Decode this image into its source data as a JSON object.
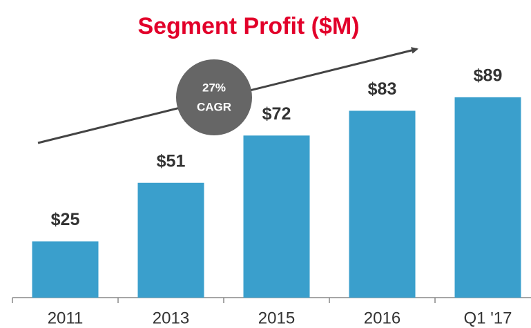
{
  "chart_data": {
    "type": "bar",
    "title": "Segment Profit ($M)",
    "categories": [
      "2011",
      "2013",
      "2015",
      "2016",
      "Q1 '17"
    ],
    "values": [
      25,
      51,
      72,
      83,
      89
    ],
    "value_labels": [
      "$25",
      "$51",
      "$72",
      "$83",
      "$89"
    ],
    "color": "#3a9fcc",
    "annotation": [
      "27%",
      "CAGR"
    ]
  }
}
